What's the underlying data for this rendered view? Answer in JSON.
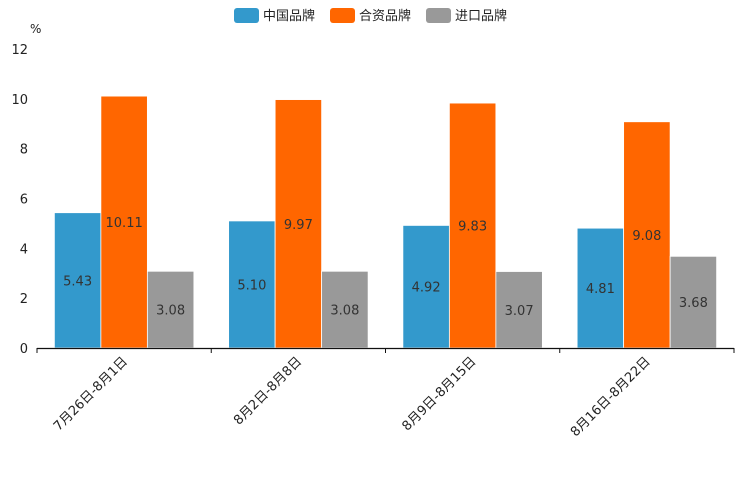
{
  "chart_data": {
    "type": "bar",
    "title": "",
    "xlabel": "",
    "ylabel": "%",
    "ylim": [
      0,
      12
    ],
    "yticks": [
      0,
      2,
      4,
      6,
      8,
      10,
      12
    ],
    "grid": false,
    "legend_position": "top-center",
    "categories": [
      "7月26日-8月1日",
      "8月2日-8月8日",
      "8月9日-8月15日",
      "8月16日-8月22日"
    ],
    "series": [
      {
        "name": "中国品牌",
        "color": "#3399cc",
        "values": [
          5.43,
          5.1,
          4.92,
          4.81
        ]
      },
      {
        "name": "合资品牌",
        "color": "#ff6600",
        "values": [
          10.11,
          9.97,
          9.83,
          9.08
        ]
      },
      {
        "name": "进口品牌",
        "color": "#999999",
        "values": [
          3.08,
          3.08,
          3.07,
          3.68
        ]
      }
    ],
    "value_labels": [
      [
        "5.43",
        "5.10",
        "4.92",
        "4.81"
      ],
      [
        "10.11",
        "9.97",
        "9.83",
        "9.08"
      ],
      [
        "3.08",
        "3.08",
        "3.07",
        "3.68"
      ]
    ]
  }
}
